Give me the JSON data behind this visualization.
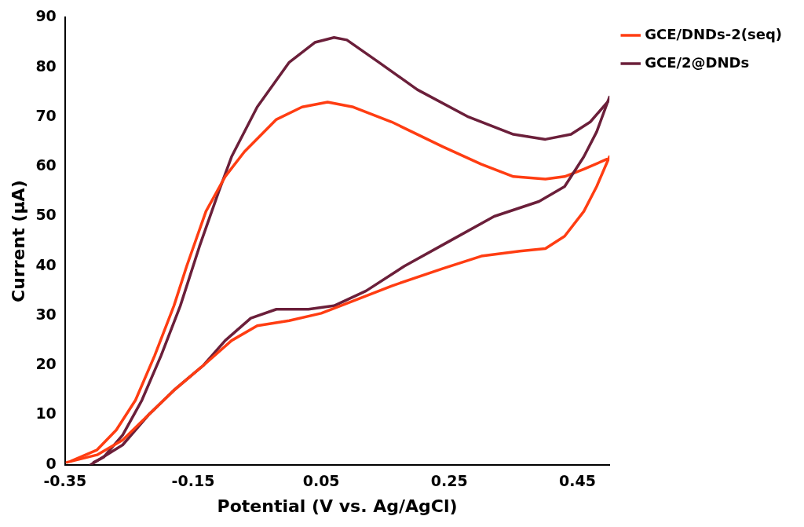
{
  "chart_data": {
    "type": "line",
    "xlabel": "Potential (V vs. Ag/AgCl)",
    "ylabel": "Current (μA)",
    "xlim": [
      -0.35,
      0.5
    ],
    "xticks": [
      -0.35,
      -0.15,
      0.05,
      0.25,
      0.45
    ],
    "ylim": [
      0,
      90
    ],
    "yticks": [
      0,
      10,
      20,
      30,
      40,
      50,
      60,
      70,
      80,
      90
    ],
    "grid": false,
    "legend": "top right",
    "marker": "none",
    "line_style": "solid",
    "series": [
      {
        "name": "GCE/DNDs-2(seq)",
        "color": "#ff3d12",
        "x": [
          -0.347,
          -0.3,
          -0.26,
          -0.22,
          -0.18,
          -0.134,
          -0.09,
          -0.05,
          0.0,
          0.05,
          0.1,
          0.16,
          0.24,
          0.3,
          0.36,
          0.4,
          0.43,
          0.46,
          0.48,
          0.5
        ],
        "values": [
          0.5,
          2,
          5,
          10,
          15,
          20,
          25,
          28,
          29,
          30.5,
          33,
          36,
          39.5,
          42,
          43,
          43.5,
          46,
          51,
          56,
          62
        ]
      },
      {
        "name": "GCE/2@DNDs",
        "color": "#6b1f3a",
        "x": [
          -0.31,
          -0.26,
          -0.22,
          -0.18,
          -0.134,
          -0.1,
          -0.06,
          -0.02,
          0.03,
          0.07,
          0.12,
          0.18,
          0.25,
          0.32,
          0.39,
          0.43,
          0.46,
          0.48,
          0.5
        ],
        "values": [
          0,
          4,
          10,
          15,
          20,
          25,
          29.5,
          31.3,
          31.3,
          32,
          35,
          40,
          45,
          50,
          53,
          56,
          62,
          67,
          74
        ]
      },
      {
        "color": "#ff3d12",
        "x": [
          0.496,
          0.46,
          0.43,
          0.4,
          0.35,
          0.3,
          0.24,
          0.16,
          0.1,
          0.06,
          0.02,
          -0.02,
          -0.07,
          -0.1,
          -0.13,
          -0.16,
          -0.18,
          -0.21,
          -0.24,
          -0.27,
          -0.3,
          -0.34
        ],
        "values": [
          61.5,
          59.5,
          58,
          57.5,
          58,
          60.5,
          64,
          69,
          72,
          73,
          72,
          69.5,
          63,
          58,
          51,
          40,
          32,
          22,
          13,
          7,
          3,
          0.8
        ]
      },
      {
        "color": "#6b1f3a",
        "x": [
          0.497,
          0.47,
          0.44,
          0.4,
          0.35,
          0.28,
          0.2,
          0.14,
          0.09,
          0.07,
          0.04,
          0.0,
          -0.05,
          -0.09,
          -0.11,
          -0.14,
          -0.17,
          -0.2,
          -0.23,
          -0.26,
          -0.29,
          -0.305
        ],
        "values": [
          73,
          69,
          66.5,
          65.5,
          66.5,
          70,
          75.5,
          81,
          85.5,
          86,
          85,
          81,
          72,
          62,
          55,
          44,
          32,
          22,
          13,
          6,
          1.5,
          0.5
        ]
      }
    ]
  }
}
